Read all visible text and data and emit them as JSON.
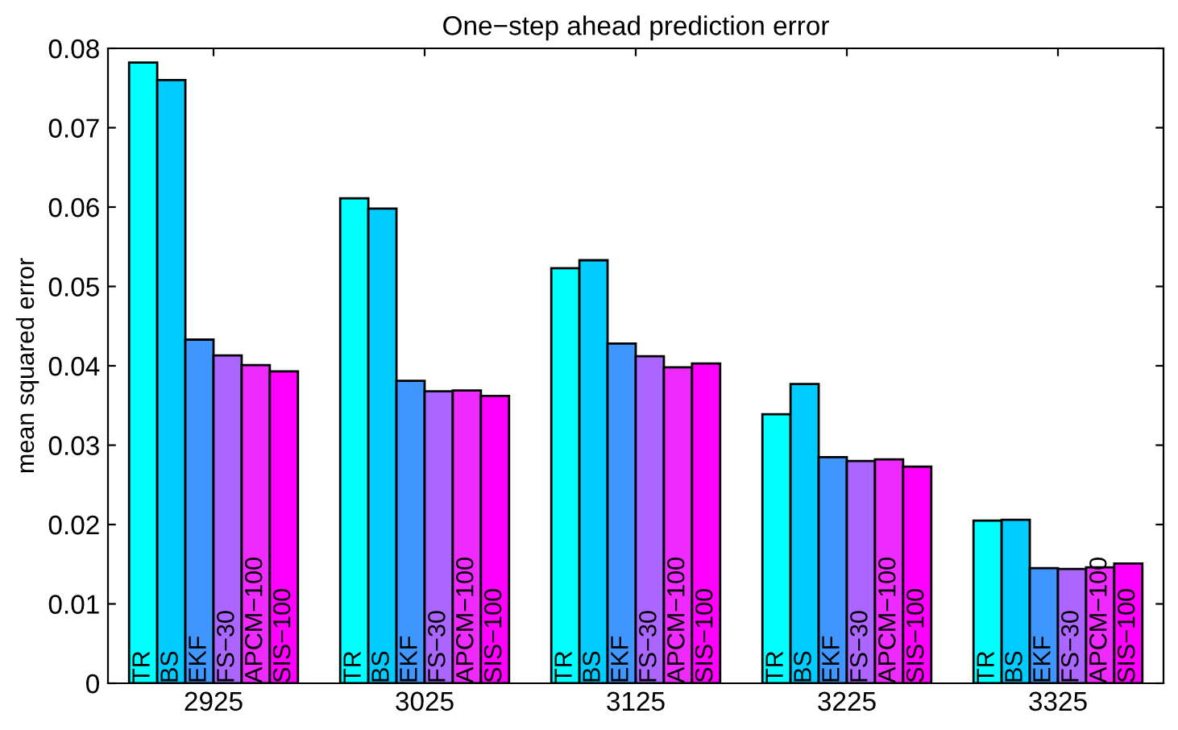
{
  "chart_data": {
    "type": "bar",
    "title": "One−step ahead prediction error",
    "ylabel": "mean squared error",
    "categories": [
      "2925",
      "3025",
      "3125",
      "3225",
      "3325"
    ],
    "series": [
      {
        "name": "TR",
        "color": "#00ffff",
        "values": [
          0.0782,
          0.0611,
          0.0523,
          0.0339,
          0.0205
        ]
      },
      {
        "name": "BS",
        "color": "#00ccff",
        "values": [
          0.076,
          0.0598,
          0.0533,
          0.0377,
          0.0206
        ]
      },
      {
        "name": "EKF",
        "color": "#4096ff",
        "values": [
          0.0433,
          0.0381,
          0.0428,
          0.0285,
          0.0145
        ]
      },
      {
        "name": "FS−30",
        "color": "#aa66ff",
        "values": [
          0.0413,
          0.0368,
          0.0412,
          0.028,
          0.0144
        ]
      },
      {
        "name": "APCM−100",
        "color": "#ee2aff",
        "values": [
          0.0401,
          0.0369,
          0.0398,
          0.0282,
          0.0146
        ]
      },
      {
        "name": "SIS−100",
        "color": "#ff00ff",
        "values": [
          0.0393,
          0.0362,
          0.0403,
          0.0273,
          0.0151
        ]
      }
    ],
    "ylim": [
      0,
      0.08
    ],
    "yticks": [
      0,
      0.01,
      0.02,
      0.03,
      0.04,
      0.05,
      0.06,
      0.07,
      0.08
    ],
    "grid": false
  }
}
